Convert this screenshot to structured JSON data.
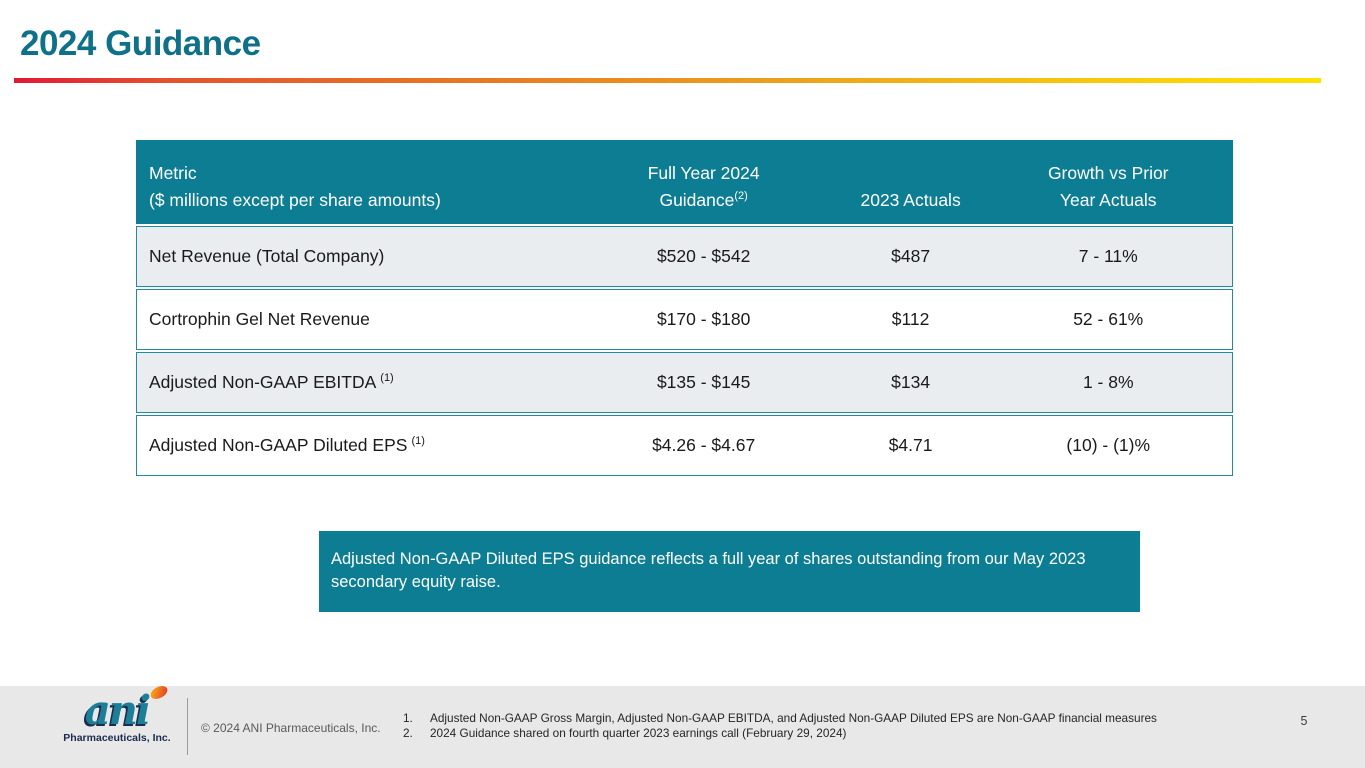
{
  "slide": {
    "title": "2024 Guidance",
    "page_number": "5"
  },
  "table": {
    "header": {
      "metric_line1": "Metric",
      "metric_line2": "($ millions except per share amounts)",
      "guidance_line1": "Full Year 2024",
      "guidance_line2": "Guidance",
      "guidance_sup": "(2)",
      "actuals": "2023 Actuals",
      "growth_line1": "Growth vs Prior",
      "growth_line2": "Year Actuals"
    },
    "rows": [
      {
        "metric": "Net Revenue (Total Company)",
        "metric_sup": "",
        "guidance": "$520 - $542",
        "actuals": "$487",
        "growth": "7 - 11%"
      },
      {
        "metric": "Cortrophin Gel Net Revenue",
        "metric_sup": "",
        "guidance": "$170 - $180",
        "actuals": "$112",
        "growth": "52 - 61%"
      },
      {
        "metric": "Adjusted Non-GAAP EBITDA",
        "metric_sup": "(1)",
        "guidance": "$135 - $145",
        "actuals": "$134",
        "growth": "1 - 8%"
      },
      {
        "metric": "Adjusted Non-GAAP Diluted EPS",
        "metric_sup": "(1)",
        "guidance": "$4.26 - $4.67",
        "actuals": "$4.71",
        "growth": "(10) - (1)%"
      }
    ]
  },
  "callout": {
    "text": "Adjusted Non-GAAP Diluted EPS guidance reflects a full year of shares outstanding from our May 2023 secondary equity raise."
  },
  "footer": {
    "logo_text": "ani",
    "logo_subtext": "Pharmaceuticals, Inc.",
    "copyright": "© 2024 ANI Pharmaceuticals, Inc.",
    "footnotes": [
      {
        "num": "1.",
        "text": "Adjusted Non-GAAP Gross Margin, Adjusted Non-GAAP EBITDA, and Adjusted Non-GAAP Diluted EPS are Non-GAAP financial measures"
      },
      {
        "num": "2.",
        "text": "2024 Guidance shared on fourth quarter 2023 earnings call (February 29, 2024)"
      }
    ]
  },
  "colors": {
    "accent_teal": "#0c7d93",
    "title_teal": "#0e7189",
    "row_alt": "#e9edf0",
    "gradient_start": "#e31837",
    "gradient_mid": "#e87822",
    "gradient_end": "#ffe100",
    "footer_bg": "#e8e8e8"
  }
}
